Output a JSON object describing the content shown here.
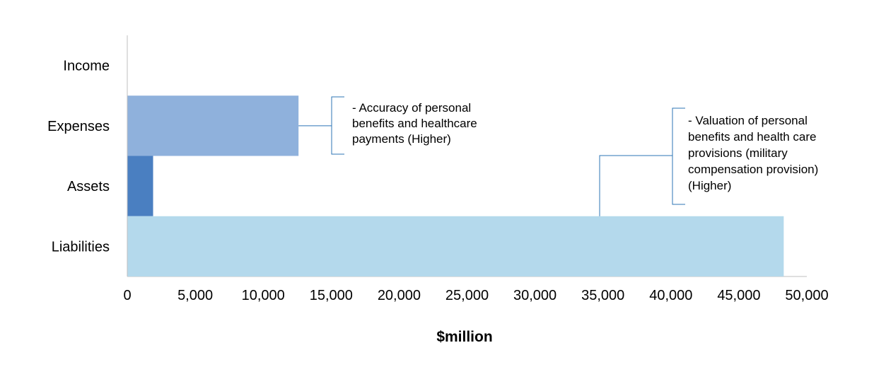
{
  "chart_data": {
    "type": "bar",
    "orientation": "horizontal",
    "categories": [
      "Income",
      "Expenses",
      "Assets",
      "Liabilities"
    ],
    "values": [
      0,
      12600,
      1900,
      48300
    ],
    "colors": [
      "#8fb1dc",
      "#8fb1dc",
      "#4a7fc1",
      "#b4d9ec"
    ],
    "xlabel": "$million",
    "ylabel": "",
    "xlim": [
      0,
      50000
    ],
    "xticks": [
      0,
      5000,
      10000,
      15000,
      20000,
      25000,
      30000,
      35000,
      40000,
      45000,
      50000
    ],
    "xtick_labels": [
      "0",
      "5,000",
      "10,000",
      "15,000",
      "20,000",
      "25,000",
      "30,000",
      "35,000",
      "40,000",
      "45,000",
      "50,000"
    ],
    "grid": false,
    "annotations": [
      {
        "category": "Expenses",
        "lines": [
          "- Accuracy of personal",
          "benefits and healthcare",
          "payments (Higher)"
        ]
      },
      {
        "category": "Liabilities",
        "lines": [
          "- Valuation of personal",
          "benefits and health care",
          "provisions (military",
          "compensation provision)",
          "(Higher)"
        ]
      }
    ],
    "accent_color": "#2e75b6"
  }
}
